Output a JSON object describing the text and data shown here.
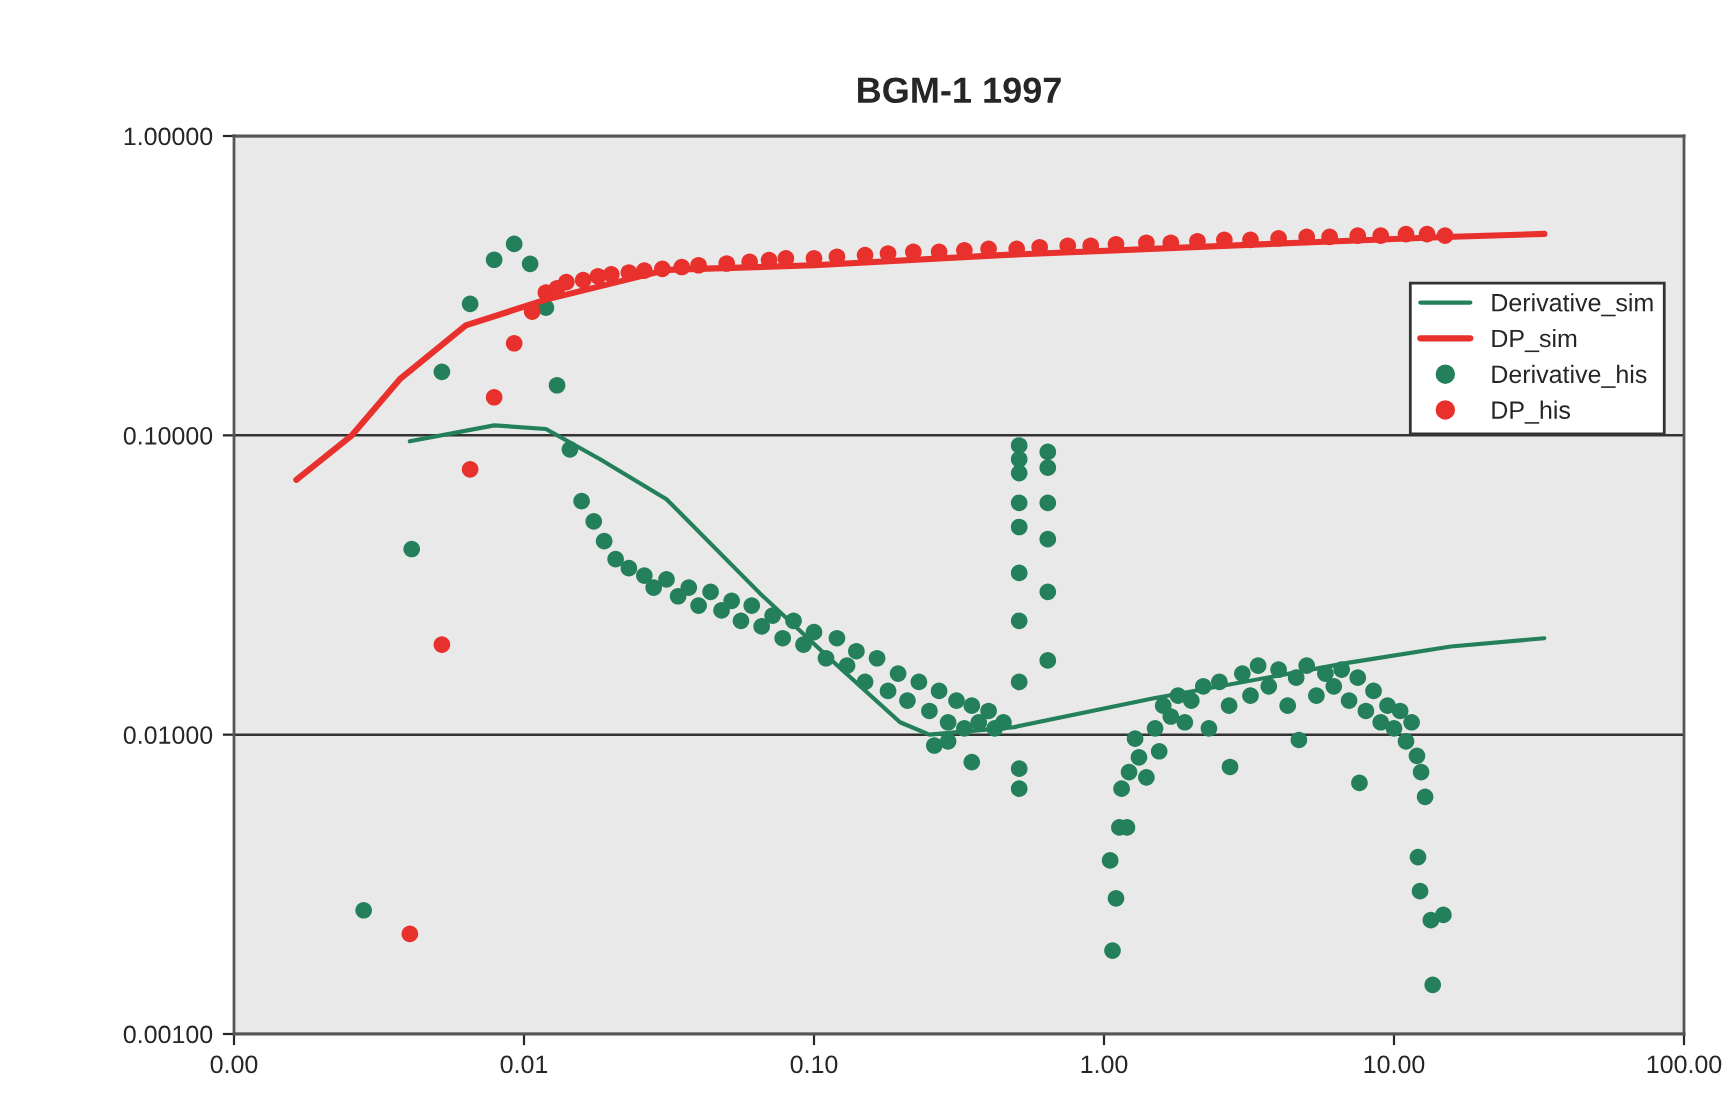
{
  "chart_data": {
    "type": "scatter",
    "title": "BGM-1 1997",
    "log": "xy",
    "grid": "y",
    "legend": "top right",
    "xlim": [
      0.001,
      100
    ],
    "ylim": [
      0.001,
      1
    ],
    "xticks": [
      {
        "value": 0.001,
        "label": "0.00"
      },
      {
        "value": 0.01,
        "label": "0.01"
      },
      {
        "value": 0.1,
        "label": "0.10"
      },
      {
        "value": 1,
        "label": "1.00"
      },
      {
        "value": 10,
        "label": "10.00"
      },
      {
        "value": 100,
        "label": "100.00"
      }
    ],
    "yticks": [
      {
        "value": 0.001,
        "label": "0.00100"
      },
      {
        "value": 0.01,
        "label": "0.01000"
      },
      {
        "value": 0.1,
        "label": "0.10000"
      },
      {
        "value": 1,
        "label": "1.00000"
      }
    ],
    "series": [
      {
        "name": "Derivative_sim",
        "type": "line",
        "color": "#23805a",
        "marker": "none",
        "line_style": "solid",
        "x": [
          0.00404,
          0.00789,
          0.0119,
          0.0183,
          0.031,
          0.065,
          0.113,
          0.198,
          0.25,
          0.49,
          1.47,
          7.0,
          15.7,
          33
        ],
        "values": [
          0.0955,
          0.108,
          0.105,
          0.0832,
          0.0612,
          0.0297,
          0.018,
          0.011,
          0.01,
          0.0106,
          0.0132,
          0.0174,
          0.0197,
          0.021
        ]
      },
      {
        "name": "DP_sim",
        "type": "line",
        "color": "#e8302c",
        "marker": "none",
        "line_style": "solid",
        "x": [
          0.00164,
          0.00255,
          0.00373,
          0.0063,
          0.0119,
          0.031,
          0.1,
          0.44,
          4.7,
          15,
          33
        ],
        "values": [
          0.071,
          0.1,
          0.154,
          0.233,
          0.284,
          0.357,
          0.37,
          0.4,
          0.44,
          0.46,
          0.471
        ]
      },
      {
        "name": "Derivative_his",
        "color": "#23805a",
        "marker": "circle",
        "x": [
          0.0028,
          0.0041,
          0.00521,
          0.00652,
          0.00789,
          0.00925,
          0.0105,
          0.0119,
          0.013,
          0.0144,
          0.0158,
          0.0174,
          0.0189,
          0.0207,
          0.023,
          0.026,
          0.028,
          0.031,
          0.034,
          0.037,
          0.04,
          0.044,
          0.048,
          0.052,
          0.056,
          0.061,
          0.066,
          0.072,
          0.078,
          0.085,
          0.092,
          0.1,
          0.11,
          0.12,
          0.13,
          0.14,
          0.15,
          0.165,
          0.18,
          0.195,
          0.21,
          0.23,
          0.25,
          0.27,
          0.29,
          0.31,
          0.33,
          0.35,
          0.37,
          0.4,
          0.42,
          0.45,
          0.26,
          0.35,
          0.29,
          0.51,
          0.51,
          0.51,
          0.51,
          0.51,
          0.51,
          0.51,
          0.51,
          0.51,
          0.51,
          0.64,
          0.64,
          0.64,
          0.64,
          0.64,
          0.64,
          1.07,
          1.1,
          1.05,
          1.13,
          1.2,
          1.15,
          1.32,
          1.28,
          1.22,
          1.4,
          1.5,
          1.6,
          1.7,
          1.8,
          1.9,
          2.0,
          2.2,
          2.3,
          2.5,
          2.7,
          2.72,
          3.0,
          3.2,
          3.4,
          3.7,
          4.0,
          4.3,
          4.6,
          5.0,
          5.4,
          5.8,
          6.2,
          6.6,
          7.0,
          7.5,
          8.0,
          8.5,
          7.6,
          9.0,
          9.5,
          10.0,
          10.5,
          11,
          11.5,
          12,
          12.4,
          12.8,
          12.1,
          12.3,
          13.4,
          14.8,
          13.6,
          1.55,
          4.7
        ],
        "values": [
          0.00259,
          0.0417,
          0.163,
          0.275,
          0.386,
          0.436,
          0.374,
          0.267,
          0.147,
          0.0898,
          0.0603,
          0.0516,
          0.0443,
          0.0386,
          0.036,
          0.034,
          0.031,
          0.033,
          0.029,
          0.031,
          0.027,
          0.03,
          0.026,
          0.028,
          0.024,
          0.027,
          0.023,
          0.025,
          0.021,
          0.024,
          0.02,
          0.022,
          0.018,
          0.021,
          0.017,
          0.019,
          0.015,
          0.018,
          0.014,
          0.016,
          0.013,
          0.015,
          0.012,
          0.014,
          0.011,
          0.013,
          0.0105,
          0.0125,
          0.011,
          0.012,
          0.0105,
          0.011,
          0.0092,
          0.0081,
          0.0095,
          0.0925,
          0.0832,
          0.0748,
          0.0595,
          0.0494,
          0.0347,
          0.024,
          0.015,
          0.0077,
          0.0066,
          0.088,
          0.078,
          0.0595,
          0.045,
          0.03,
          0.0177,
          0.0019,
          0.00284,
          0.0038,
          0.0049,
          0.0049,
          0.0066,
          0.0084,
          0.0097,
          0.0075,
          0.0072,
          0.0105,
          0.0125,
          0.0115,
          0.0135,
          0.011,
          0.013,
          0.0145,
          0.0105,
          0.015,
          0.0125,
          0.0078,
          0.016,
          0.0135,
          0.017,
          0.0145,
          0.0165,
          0.0125,
          0.0155,
          0.017,
          0.0135,
          0.016,
          0.0145,
          0.0165,
          0.013,
          0.0155,
          0.012,
          0.014,
          0.0069,
          0.011,
          0.0125,
          0.0105,
          0.012,
          0.0095,
          0.011,
          0.0085,
          0.0075,
          0.0062,
          0.0039,
          0.003,
          0.0024,
          0.0025,
          0.00146,
          0.0088,
          0.0096
        ]
      },
      {
        "name": "DP_his",
        "color": "#e8302c",
        "marker": "circle",
        "x": [
          0.00404,
          0.00521,
          0.00652,
          0.00789,
          0.00925,
          0.01067,
          0.0119,
          0.013,
          0.014,
          0.016,
          0.018,
          0.02,
          0.023,
          0.026,
          0.03,
          0.035,
          0.04,
          0.05,
          0.06,
          0.07,
          0.08,
          0.1,
          0.12,
          0.15,
          0.18,
          0.22,
          0.27,
          0.33,
          0.4,
          0.5,
          0.6,
          0.75,
          0.9,
          1.1,
          1.4,
          1.7,
          2.1,
          2.6,
          3.2,
          4,
          5,
          6,
          7.5,
          9,
          11,
          13,
          15
        ],
        "values": [
          0.00216,
          0.02,
          0.077,
          0.134,
          0.203,
          0.259,
          0.3,
          0.31,
          0.325,
          0.33,
          0.34,
          0.345,
          0.35,
          0.355,
          0.36,
          0.365,
          0.37,
          0.375,
          0.38,
          0.385,
          0.39,
          0.39,
          0.395,
          0.4,
          0.405,
          0.41,
          0.41,
          0.415,
          0.42,
          0.42,
          0.425,
          0.43,
          0.43,
          0.435,
          0.44,
          0.44,
          0.445,
          0.45,
          0.45,
          0.455,
          0.46,
          0.46,
          0.465,
          0.465,
          0.47,
          0.47,
          0.465
        ]
      }
    ]
  }
}
